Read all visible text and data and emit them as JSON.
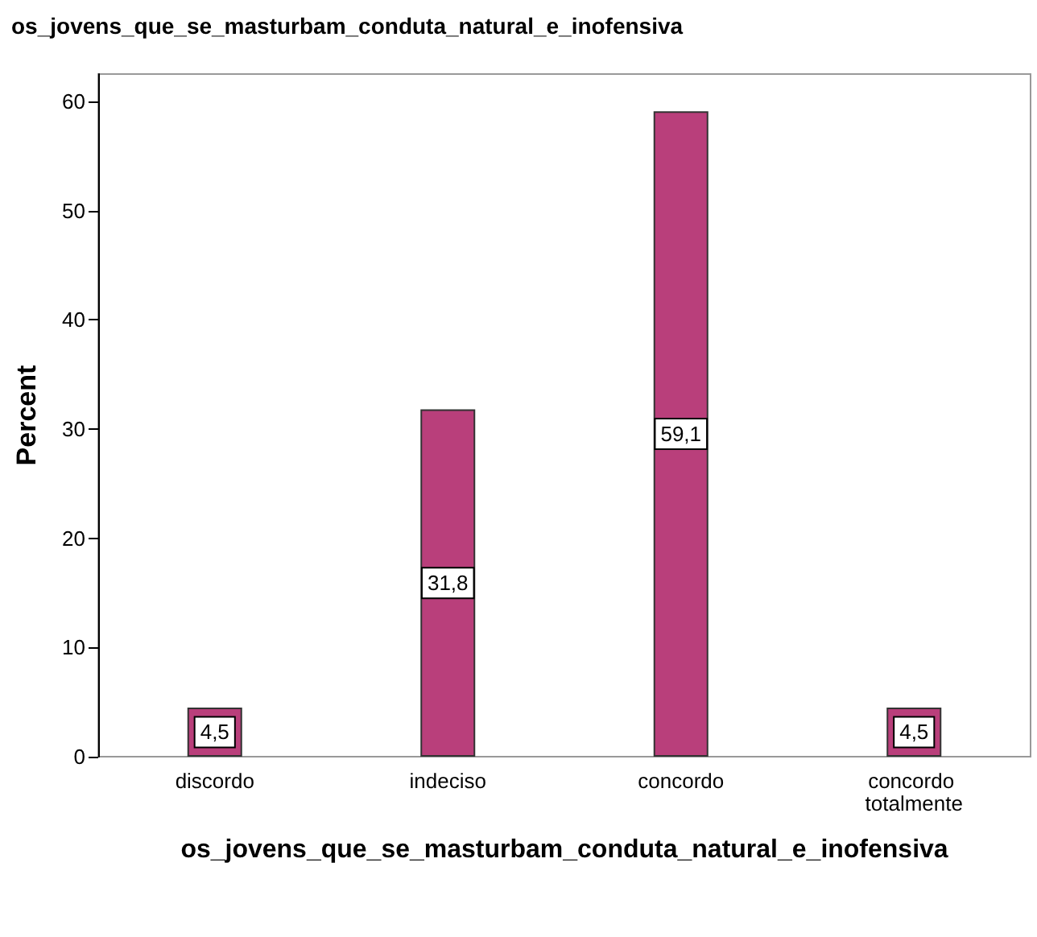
{
  "chart_data": {
    "type": "bar",
    "title": "os_jovens_que_se_masturbam_conduta_natural_e_inofensiva",
    "xlabel": "os_jovens_que_se_masturbam_conduta_natural_e_inofensiva",
    "ylabel": "Percent",
    "categories": [
      "discordo",
      "indeciso",
      "concordo",
      "concordo totalmente"
    ],
    "values": [
      4.5,
      31.8,
      59.1,
      4.5
    ],
    "value_labels": [
      "4,5",
      "31,8",
      "59,1",
      "4,5"
    ],
    "color": "#b93f7b",
    "ylim": [
      0,
      62.5
    ],
    "yticks": [
      0,
      10,
      20,
      30,
      40,
      50,
      60
    ],
    "grid": false
  }
}
